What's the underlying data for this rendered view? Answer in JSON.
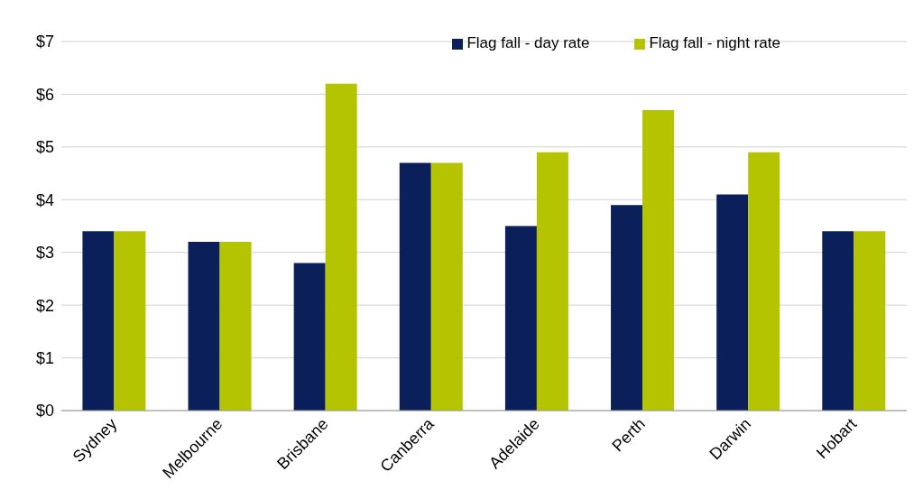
{
  "chart_data": {
    "type": "bar",
    "categories": [
      "Sydney",
      "Melbourne",
      "Brisbane",
      "Canberra",
      "Adelaide",
      "Perth",
      "Darwin",
      "Hobart"
    ],
    "series": [
      {
        "name": "Flag fall - day rate",
        "color": "#0b1f5b",
        "values": [
          3.4,
          3.2,
          2.8,
          4.7,
          3.5,
          3.9,
          4.1,
          3.4
        ]
      },
      {
        "name": "Flag fall - night rate",
        "color": "#b5c400",
        "values": [
          3.4,
          3.2,
          6.2,
          4.7,
          4.9,
          5.7,
          4.9,
          3.4
        ]
      }
    ],
    "ylim": [
      0,
      7
    ],
    "yticks": [
      {
        "value": 0,
        "label": "$0"
      },
      {
        "value": 1,
        "label": "$1"
      },
      {
        "value": 2,
        "label": "$2"
      },
      {
        "value": 3,
        "label": "$3"
      },
      {
        "value": 4,
        "label": "$4"
      },
      {
        "value": 5,
        "label": "$5"
      },
      {
        "value": 6,
        "label": "$6"
      },
      {
        "value": 7,
        "label": "$7"
      }
    ],
    "grid": "y",
    "legend": "top right"
  }
}
